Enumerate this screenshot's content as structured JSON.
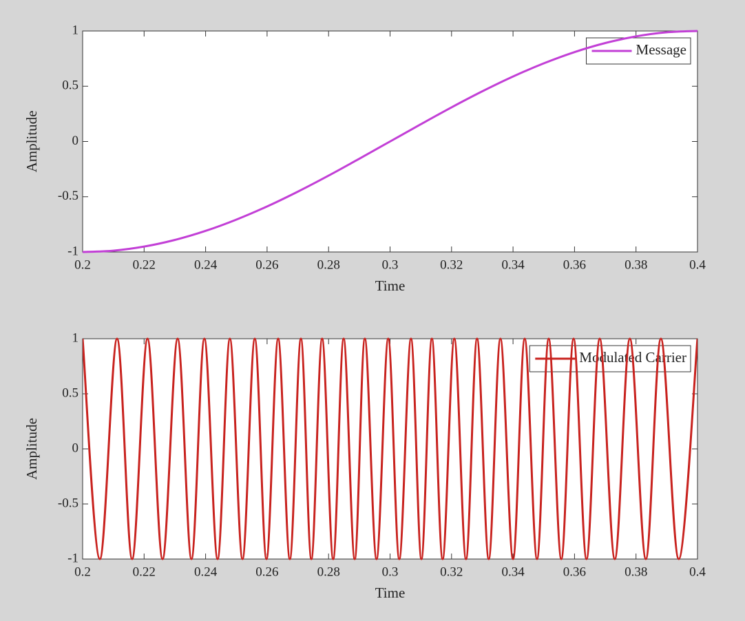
{
  "chart_data": [
    {
      "type": "line",
      "xlabel": "Time",
      "ylabel": "Amplitude",
      "x": [
        0.2,
        0.21,
        0.22,
        0.23,
        0.24,
        0.25,
        0.26,
        0.27,
        0.28,
        0.29,
        0.3,
        0.31,
        0.32,
        0.33,
        0.34,
        0.35,
        0.36,
        0.37,
        0.38,
        0.39,
        0.4
      ],
      "series": [
        {
          "name": "Message",
          "color": "#c23fd6",
          "values": [
            -1,
            -0.988,
            -0.951,
            -0.891,
            -0.809,
            -0.707,
            -0.588,
            -0.454,
            -0.309,
            -0.156,
            0,
            0.156,
            0.309,
            0.454,
            0.588,
            0.707,
            0.809,
            0.891,
            0.951,
            0.988,
            1
          ]
        }
      ],
      "xlim": [
        0.2,
        0.4
      ],
      "ylim": [
        -1,
        1
      ],
      "xticks": [
        0.2,
        0.22,
        0.24,
        0.26,
        0.28,
        0.3,
        0.32,
        0.34,
        0.36,
        0.38,
        0.4
      ],
      "yticks": [
        -1,
        -0.5,
        0,
        0.5,
        1
      ],
      "grid": false,
      "legend": "upper right"
    },
    {
      "type": "line",
      "xlabel": "Time",
      "ylabel": "Amplitude",
      "x": [
        0.2,
        0.2056,
        0.2112,
        0.2161,
        0.2211,
        0.226,
        0.2309,
        0.2354,
        0.2396,
        0.2439,
        0.2479,
        0.252,
        0.256,
        0.2598,
        0.2636,
        0.2674,
        0.271,
        0.2744,
        0.2779,
        0.2815,
        0.2849,
        0.2885,
        0.2918,
        0.2956,
        0.2994,
        0.303,
        0.3068,
        0.3102,
        0.3136,
        0.3171,
        0.3209,
        0.3247,
        0.3283,
        0.3321,
        0.3359,
        0.34,
        0.3438,
        0.3478,
        0.3516,
        0.3557,
        0.3597,
        0.3639,
        0.3682,
        0.3731,
        0.378,
        0.3832,
        0.3881,
        0.3939,
        0.4
      ],
      "series": [
        {
          "name": "Modulated Carrier",
          "color": "#c8221e",
          "values": [
            1,
            -1,
            1,
            -1,
            1,
            -1,
            1,
            -1,
            1,
            -1,
            1,
            -1,
            1,
            -1,
            1,
            -1,
            1,
            -1,
            1,
            -1,
            1,
            -1,
            1,
            -1,
            1,
            -1,
            1,
            -1,
            1,
            -1,
            1,
            -1,
            1,
            -1,
            1,
            -1,
            1,
            -1,
            1,
            -1,
            1,
            -1,
            1,
            -1,
            1,
            -1,
            1,
            -1,
            1
          ]
        }
      ],
      "xlim": [
        0.2,
        0.4
      ],
      "ylim": [
        -1,
        1
      ],
      "xticks": [
        0.2,
        0.22,
        0.24,
        0.26,
        0.28,
        0.3,
        0.32,
        0.34,
        0.36,
        0.38,
        0.4
      ],
      "yticks": [
        -1,
        -0.5,
        0,
        0.5,
        1
      ],
      "grid": false,
      "legend": "upper right"
    }
  ]
}
